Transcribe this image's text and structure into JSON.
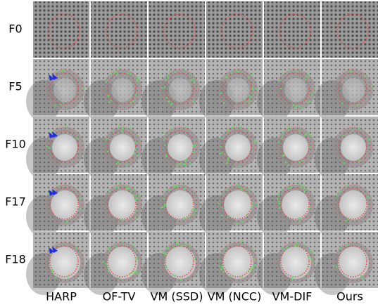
{
  "rows": [
    "F0",
    "F5",
    "F10",
    "F17",
    "F18"
  ],
  "columns": [
    "HARP",
    "OF-TV",
    "VM (SSD)",
    "VM (NCC)",
    "VM-DIF",
    "Ours"
  ]
}
